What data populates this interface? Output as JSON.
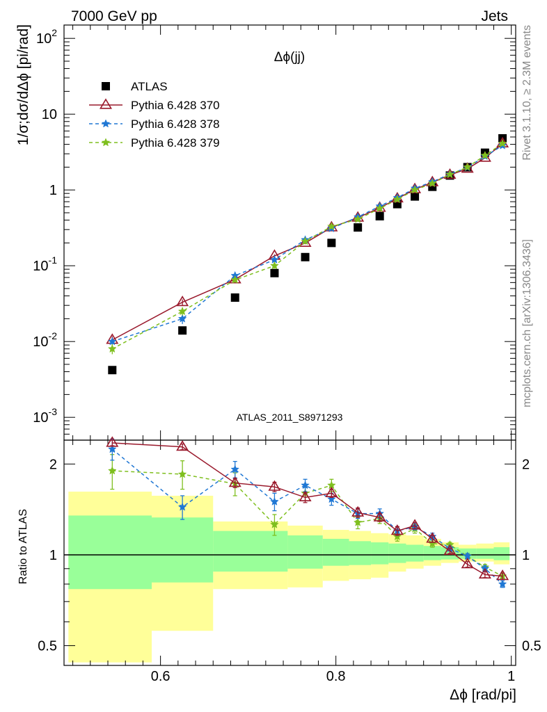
{
  "header": {
    "left": "7000 GeV pp",
    "right": "Jets"
  },
  "side_labels": {
    "rivet": "Rivet 3.1.10, ≥ 2.3M events",
    "mcplots": "mcplots.cern.ch [arXiv:1306.3436]"
  },
  "analysis_id": "ATLAS_2011_S8971293",
  "colors": {
    "atlas": "#000000",
    "p370": "#99182b",
    "p378": "#1f77d4",
    "p379": "#7fbf1f",
    "band_outer": "#ffff99",
    "band_inner": "#99ff99"
  },
  "chart_data": [
    {
      "type": "scatter",
      "title": "Δϕ(jj)",
      "ylabel": "1/σ;dσ/dΔϕ [pi/rad]",
      "yscale": "log",
      "ylim": [
        0.0005,
        150
      ],
      "xlim": [
        0.49,
        1.005
      ],
      "y_ticks": [
        "10^2",
        "10",
        "1",
        "10^-1",
        "10^-2",
        "10^-3"
      ],
      "legend_position": "top-left",
      "x": [
        0.545,
        0.625,
        0.685,
        0.73,
        0.765,
        0.795,
        0.825,
        0.85,
        0.87,
        0.89,
        0.91,
        0.93,
        0.95,
        0.97,
        0.99
      ],
      "series": [
        {
          "name": "ATLAS",
          "style": "square",
          "values": [
            0.0042,
            0.014,
            0.038,
            0.08,
            0.13,
            0.2,
            0.32,
            0.45,
            0.65,
            0.82,
            1.1,
            1.55,
            2.0,
            3.1,
            4.8
          ]
        },
        {
          "name": "Pythia 6.428 370",
          "style": "triangle-solid",
          "values": [
            0.0105,
            0.033,
            0.066,
            0.135,
            0.2,
            0.32,
            0.43,
            0.58,
            0.77,
            1.02,
            1.26,
            1.58,
            1.9,
            2.65,
            4.1
          ],
          "errors": [
            0.0012,
            0.003,
            0.004,
            0.006,
            0.008,
            0.01,
            0.012,
            0.015,
            0.02,
            0.025,
            0.03,
            0.035,
            0.04,
            0.06,
            0.09
          ]
        },
        {
          "name": "Pythia 6.428 378",
          "style": "star-dashed",
          "values": [
            0.01,
            0.02,
            0.074,
            0.12,
            0.22,
            0.31,
            0.44,
            0.61,
            0.79,
            1.05,
            1.28,
            1.62,
            1.98,
            2.78,
            3.85
          ],
          "errors": [
            0.0012,
            0.003,
            0.005,
            0.008,
            0.01,
            0.012,
            0.014,
            0.02,
            0.02,
            0.025,
            0.03,
            0.035,
            0.04,
            0.06,
            0.09
          ]
        },
        {
          "name": "Pythia 6.428 379",
          "style": "star-dashed",
          "values": [
            0.008,
            0.025,
            0.065,
            0.1,
            0.21,
            0.33,
            0.41,
            0.57,
            0.75,
            1.0,
            1.22,
            1.6,
            2.0,
            2.85,
            4.1
          ],
          "errors": [
            0.0012,
            0.003,
            0.005,
            0.008,
            0.01,
            0.012,
            0.014,
            0.02,
            0.02,
            0.025,
            0.03,
            0.035,
            0.04,
            0.06,
            0.09
          ]
        }
      ]
    },
    {
      "type": "line",
      "ylabel": "Ratio to ATLAS",
      "xlabel": "Δϕ [rad/pi]",
      "xlim": [
        0.49,
        1.005
      ],
      "ylim": [
        0.43,
        2.4
      ],
      "yscale": "log",
      "x_ticks": [
        "0.6",
        "0.8",
        "1"
      ],
      "y_ticks": [
        "0.5",
        "1",
        "2"
      ],
      "band_bins": [
        {
          "x0": 0.495,
          "x1": 0.59,
          "inner": [
            0.77,
            1.35
          ],
          "outer": [
            0.44,
            1.62
          ]
        },
        {
          "x0": 0.59,
          "x1": 0.66,
          "inner": [
            0.81,
            1.33
          ],
          "outer": [
            0.56,
            1.57
          ]
        },
        {
          "x0": 0.66,
          "x1": 0.745,
          "inner": [
            0.88,
            1.2
          ],
          "outer": [
            0.77,
            1.29
          ]
        },
        {
          "x0": 0.745,
          "x1": 0.785,
          "inner": [
            0.9,
            1.16
          ],
          "outer": [
            0.78,
            1.25
          ]
        },
        {
          "x0": 0.785,
          "x1": 0.815,
          "inner": [
            0.92,
            1.13
          ],
          "outer": [
            0.82,
            1.21
          ]
        },
        {
          "x0": 0.815,
          "x1": 0.84,
          "inner": [
            0.925,
            1.11
          ],
          "outer": [
            0.83,
            1.2
          ]
        },
        {
          "x0": 0.84,
          "x1": 0.86,
          "inner": [
            0.93,
            1.1
          ],
          "outer": [
            0.84,
            1.18
          ]
        },
        {
          "x0": 0.86,
          "x1": 0.88,
          "inner": [
            0.94,
            1.09
          ],
          "outer": [
            0.88,
            1.17
          ]
        },
        {
          "x0": 0.88,
          "x1": 0.9,
          "inner": [
            0.95,
            1.08
          ],
          "outer": [
            0.9,
            1.16
          ]
        },
        {
          "x0": 0.9,
          "x1": 0.92,
          "inner": [
            0.96,
            1.07
          ],
          "outer": [
            0.92,
            1.13
          ]
        },
        {
          "x0": 0.92,
          "x1": 0.94,
          "inner": [
            0.965,
            1.06
          ],
          "outer": [
            0.94,
            1.1
          ]
        },
        {
          "x0": 0.94,
          "x1": 0.96,
          "inner": [
            0.97,
            1.05
          ],
          "outer": [
            0.95,
            1.08
          ]
        },
        {
          "x0": 0.96,
          "x1": 0.98,
          "inner": [
            0.97,
            1.05
          ],
          "outer": [
            0.95,
            1.09
          ]
        },
        {
          "x0": 0.98,
          "x1": 0.998,
          "inner": [
            0.96,
            1.06
          ],
          "outer": [
            0.93,
            1.1
          ]
        }
      ],
      "x": [
        0.545,
        0.625,
        0.685,
        0.73,
        0.765,
        0.795,
        0.825,
        0.85,
        0.87,
        0.89,
        0.91,
        0.93,
        0.95,
        0.97,
        0.99
      ],
      "series": [
        {
          "name": "Pythia 6.428 370",
          "values": [
            2.35,
            2.28,
            1.73,
            1.68,
            1.55,
            1.6,
            1.38,
            1.33,
            1.2,
            1.25,
            1.13,
            1.03,
            0.93,
            0.86,
            0.85
          ],
          "errors": [
            0.05,
            0.05,
            0.06,
            0.06,
            0.06,
            0.05,
            0.05,
            0.04,
            0.04,
            0.03,
            0.03,
            0.02,
            0.02,
            0.02,
            0.02
          ]
        },
        {
          "name": "Pythia 6.428 378",
          "values": [
            2.24,
            1.44,
            1.92,
            1.5,
            1.7,
            1.53,
            1.37,
            1.37,
            1.2,
            1.24,
            1.15,
            1.05,
            0.99,
            0.9,
            0.8
          ],
          "errors": [
            0.18,
            0.13,
            0.12,
            0.1,
            0.08,
            0.07,
            0.05,
            0.05,
            0.04,
            0.03,
            0.03,
            0.02,
            0.02,
            0.02,
            0.02
          ]
        },
        {
          "name": "Pythia 6.428 379",
          "values": [
            1.9,
            1.85,
            1.72,
            1.26,
            1.6,
            1.7,
            1.28,
            1.32,
            1.15,
            1.22,
            1.09,
            1.08,
            0.99,
            0.91,
            0.85
          ],
          "errors": [
            0.25,
            0.2,
            0.15,
            0.1,
            0.09,
            0.08,
            0.06,
            0.05,
            0.04,
            0.04,
            0.03,
            0.02,
            0.02,
            0.02,
            0.02
          ]
        }
      ]
    }
  ]
}
